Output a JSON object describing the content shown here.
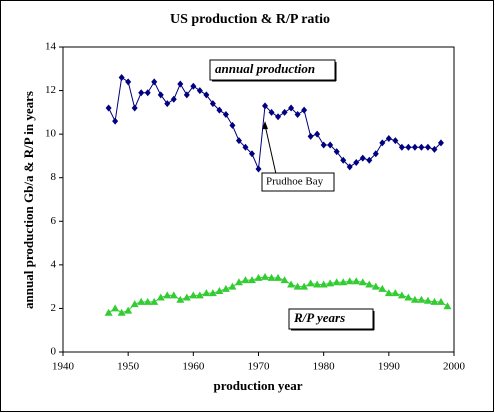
{
  "chart_data": {
    "type": "line",
    "title": "US  production & R/P ratio",
    "x_label": "production year",
    "y_label": "annual production Gb/a & R/P in years",
    "xlim": [
      1940,
      2000
    ],
    "xticks": [
      1940,
      1950,
      1960,
      1970,
      1980,
      1990,
      2000
    ],
    "ylim": [
      0,
      14
    ],
    "yticks": [
      0,
      2,
      4,
      6,
      8,
      10,
      12,
      14
    ],
    "grid": false,
    "series": [
      {
        "name": "annual production",
        "color": "#000080",
        "marker": "diamond",
        "x": [
          1947,
          1948,
          1949,
          1950,
          1951,
          1952,
          1953,
          1954,
          1955,
          1956,
          1957,
          1958,
          1959,
          1960,
          1961,
          1962,
          1963,
          1964,
          1965,
          1966,
          1967,
          1968,
          1969,
          1970,
          1971,
          1972,
          1973,
          1974,
          1975,
          1976,
          1977,
          1978,
          1979,
          1980,
          1981,
          1982,
          1983,
          1984,
          1985,
          1986,
          1987,
          1988,
          1989,
          1990,
          1991,
          1992,
          1993,
          1994,
          1995,
          1996,
          1997,
          1998
        ],
        "values": [
          11.2,
          10.6,
          12.6,
          12.4,
          11.2,
          11.9,
          11.9,
          12.4,
          11.8,
          11.4,
          11.6,
          12.3,
          11.8,
          12.2,
          12.0,
          11.8,
          11.4,
          11.1,
          10.9,
          10.4,
          9.7,
          9.4,
          9.1,
          8.4,
          11.3,
          11.0,
          10.8,
          11.0,
          11.2,
          10.9,
          11.1,
          9.9,
          10.0,
          9.5,
          9.5,
          9.2,
          8.8,
          8.5,
          8.7,
          8.9,
          8.8,
          9.1,
          9.6,
          9.8,
          9.7,
          9.4,
          9.4,
          9.4,
          9.4,
          9.4,
          9.3,
          9.6
        ]
      },
      {
        "name": "R/P years",
        "color": "#33cc33",
        "marker": "triangle",
        "x": [
          1947,
          1948,
          1949,
          1950,
          1951,
          1952,
          1953,
          1954,
          1955,
          1956,
          1957,
          1958,
          1959,
          1960,
          1961,
          1962,
          1963,
          1964,
          1965,
          1966,
          1967,
          1968,
          1969,
          1970,
          1971,
          1972,
          1973,
          1974,
          1975,
          1976,
          1977,
          1978,
          1979,
          1980,
          1981,
          1982,
          1983,
          1984,
          1985,
          1986,
          1987,
          1988,
          1989,
          1990,
          1991,
          1992,
          1993,
          1994,
          1995,
          1996,
          1997,
          1998,
          1999
        ],
        "values": [
          1.8,
          2.0,
          1.8,
          1.9,
          2.2,
          2.3,
          2.3,
          2.3,
          2.5,
          2.6,
          2.6,
          2.4,
          2.5,
          2.6,
          2.6,
          2.7,
          2.7,
          2.8,
          2.9,
          3.0,
          3.2,
          3.3,
          3.3,
          3.4,
          3.45,
          3.4,
          3.4,
          3.3,
          3.1,
          3.0,
          3.0,
          3.15,
          3.1,
          3.1,
          3.15,
          3.2,
          3.2,
          3.25,
          3.25,
          3.2,
          3.1,
          3.0,
          2.9,
          2.7,
          2.7,
          2.6,
          2.5,
          2.4,
          2.4,
          2.35,
          2.3,
          2.3,
          2.1
        ]
      }
    ],
    "annotations": [
      {
        "text": "Prudhoe Bay",
        "x": 1971,
        "y": 10.6
      }
    ]
  }
}
